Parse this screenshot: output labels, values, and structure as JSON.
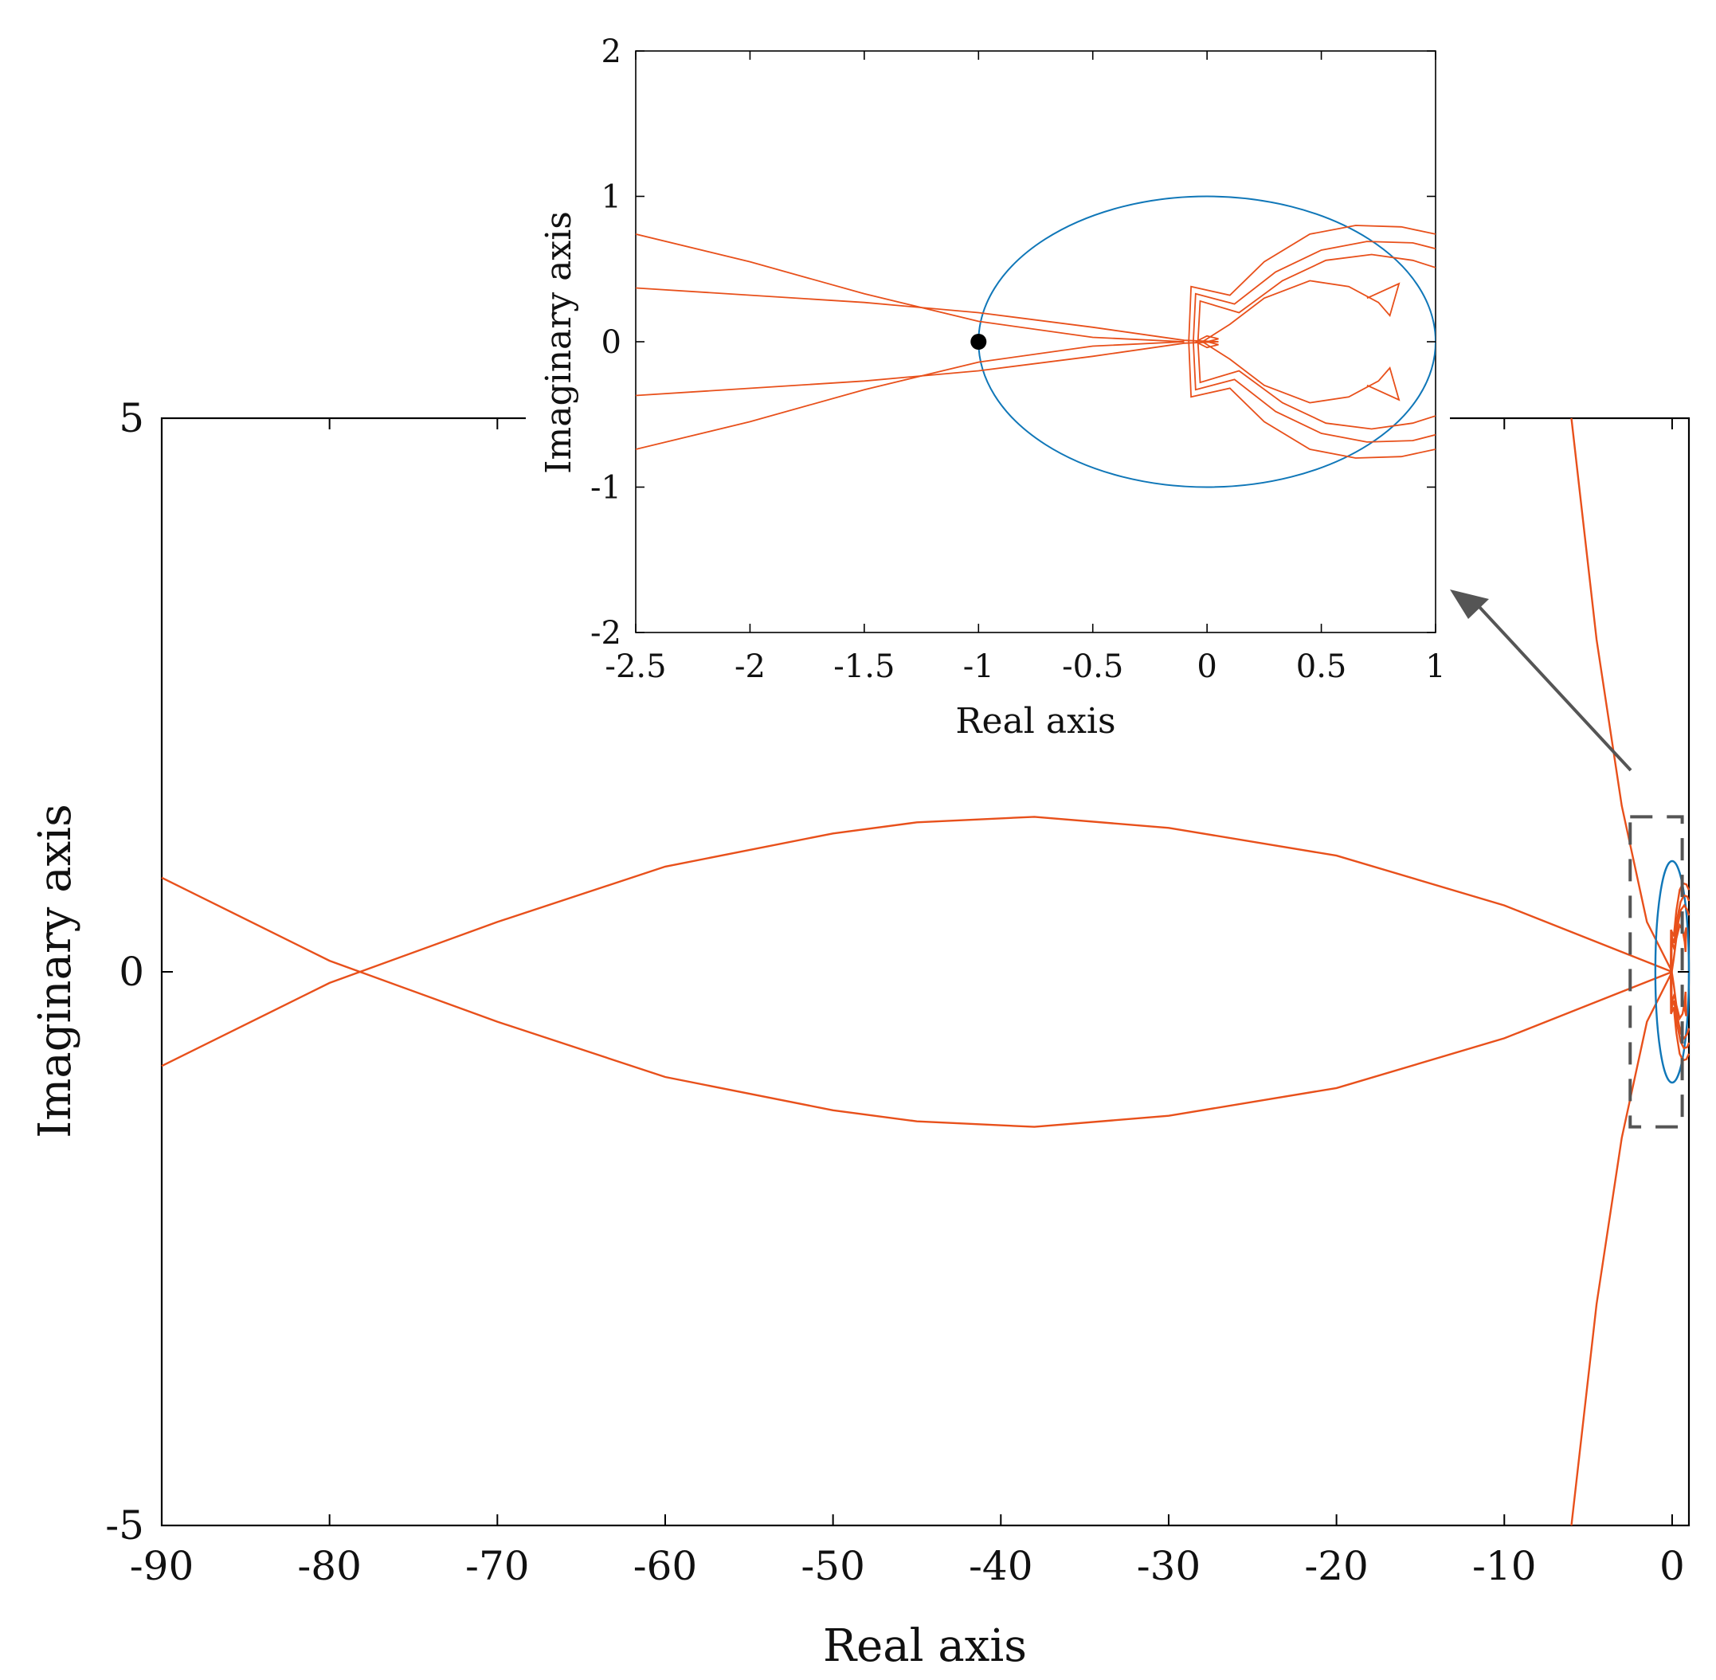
{
  "chart_data": [
    {
      "id": "main",
      "type": "line",
      "title": "",
      "xlabel": "Real axis",
      "ylabel": "Imaginary axis",
      "xlim": [
        -90,
        1
      ],
      "ylim": [
        -5,
        5
      ],
      "xticks": [
        -90,
        -80,
        -70,
        -60,
        -50,
        -40,
        -30,
        -20,
        -10,
        0
      ],
      "yticks": [
        -5,
        0,
        5
      ],
      "grid": false,
      "colors": {
        "nyquist": "#e8501b",
        "unit_circle": "#1077b8",
        "axes": "#000000",
        "zoom_box": "#555555"
      },
      "series": [
        {
          "points": [
            [
              -90,
              0.85
            ],
            [
              -80,
              0.1
            ],
            [
              -70,
              -0.45
            ],
            [
              -60,
              -0.95
            ],
            [
              -50,
              -1.25
            ],
            [
              -45,
              -1.35
            ],
            [
              -38,
              -1.4
            ],
            [
              -30,
              -1.3
            ],
            [
              -20,
              -1.05
            ],
            [
              -10,
              -0.6
            ],
            [
              -3,
              -0.18
            ],
            [
              0,
              0
            ]
          ]
        },
        {
          "points": [
            [
              -90,
              -0.85
            ],
            [
              -80,
              -0.1
            ],
            [
              -70,
              0.45
            ],
            [
              -60,
              0.95
            ],
            [
              -50,
              1.25
            ],
            [
              -45,
              1.35
            ],
            [
              -38,
              1.4
            ],
            [
              -30,
              1.3
            ],
            [
              -20,
              1.05
            ],
            [
              -10,
              0.6
            ],
            [
              -3,
              0.18
            ],
            [
              0,
              0
            ]
          ]
        },
        {
          "points": [
            [
              -6,
              5
            ],
            [
              -4.5,
              3
            ],
            [
              -3,
              1.5
            ],
            [
              -1.5,
              0.45
            ],
            [
              0,
              0
            ]
          ]
        },
        {
          "points": [
            [
              -6,
              -5
            ],
            [
              -4.5,
              -3
            ],
            [
              -3,
              -1.5
            ],
            [
              -1.5,
              -0.45
            ],
            [
              0,
              0
            ]
          ]
        }
      ],
      "zoom_box": {
        "x": [
          -2.5,
          0.6
        ],
        "y": [
          -1.4,
          1.4
        ]
      }
    },
    {
      "id": "inset",
      "type": "line",
      "title": "",
      "xlabel": "Real axis",
      "ylabel": "Imaginary axis",
      "xlim": [
        -2.5,
        1
      ],
      "ylim": [
        -2,
        2
      ],
      "xticks": [
        -2.5,
        -2,
        -1.5,
        -1,
        -0.5,
        0,
        0.5,
        1
      ],
      "yticks": [
        -2,
        -1,
        0,
        1,
        2
      ],
      "grid": false,
      "critical_point": [
        -1,
        0
      ],
      "unit_circle": {
        "center": [
          0,
          0
        ],
        "radius": 1
      },
      "series": [
        {
          "points": [
            [
              -2.5,
              0.74
            ],
            [
              -2.0,
              0.55
            ],
            [
              -1.5,
              0.33
            ],
            [
              -1.0,
              0.14
            ],
            [
              -0.5,
              0.03
            ],
            [
              -0.1,
              0
            ]
          ]
        },
        {
          "points": [
            [
              -2.5,
              -0.74
            ],
            [
              -2.0,
              -0.55
            ],
            [
              -1.5,
              -0.33
            ],
            [
              -1.0,
              -0.14
            ],
            [
              -0.5,
              -0.03
            ],
            [
              -0.1,
              0
            ]
          ]
        },
        {
          "points": [
            [
              -2.5,
              0.37
            ],
            [
              -1.5,
              0.27
            ],
            [
              -1.0,
              0.2
            ],
            [
              -0.5,
              0.1
            ],
            [
              -0.1,
              0.01
            ],
            [
              0.05,
              0
            ]
          ]
        },
        {
          "points": [
            [
              -2.5,
              -0.37
            ],
            [
              -1.5,
              -0.27
            ],
            [
              -1.0,
              -0.2
            ],
            [
              -0.5,
              -0.1
            ],
            [
              -0.1,
              -0.01
            ],
            [
              0.05,
              0
            ]
          ]
        },
        {
          "points": [
            [
              -0.08,
              0
            ],
            [
              -0.07,
              0.38
            ],
            [
              0.1,
              0.32
            ],
            [
              0.25,
              0.55
            ],
            [
              0.45,
              0.74
            ],
            [
              0.65,
              0.8
            ],
            [
              0.85,
              0.79
            ],
            [
              1,
              0.74
            ]
          ]
        },
        {
          "points": [
            [
              -0.08,
              0
            ],
            [
              -0.07,
              -0.38
            ],
            [
              0.1,
              -0.32
            ],
            [
              0.25,
              -0.55
            ],
            [
              0.45,
              -0.74
            ],
            [
              0.65,
              -0.8
            ],
            [
              0.85,
              -0.79
            ],
            [
              1,
              -0.74
            ]
          ]
        },
        {
          "points": [
            [
              -0.06,
              0
            ],
            [
              -0.05,
              0.33
            ],
            [
              0.12,
              0.26
            ],
            [
              0.3,
              0.48
            ],
            [
              0.5,
              0.63
            ],
            [
              0.7,
              0.69
            ],
            [
              0.9,
              0.68
            ],
            [
              1,
              0.64
            ]
          ]
        },
        {
          "points": [
            [
              -0.06,
              0
            ],
            [
              -0.05,
              -0.33
            ],
            [
              0.12,
              -0.26
            ],
            [
              0.3,
              -0.48
            ],
            [
              0.5,
              -0.63
            ],
            [
              0.7,
              -0.69
            ],
            [
              0.9,
              -0.68
            ],
            [
              1,
              -0.64
            ]
          ]
        },
        {
          "points": [
            [
              -0.04,
              0
            ],
            [
              -0.03,
              0.28
            ],
            [
              0.14,
              0.2
            ],
            [
              0.33,
              0.42
            ],
            [
              0.52,
              0.56
            ],
            [
              0.72,
              0.6
            ],
            [
              0.9,
              0.56
            ],
            [
              1,
              0.51
            ]
          ]
        },
        {
          "points": [
            [
              -0.04,
              0
            ],
            [
              -0.03,
              -0.28
            ],
            [
              0.14,
              -0.2
            ],
            [
              0.33,
              -0.42
            ],
            [
              0.52,
              -0.56
            ],
            [
              0.72,
              -0.6
            ],
            [
              0.9,
              -0.56
            ],
            [
              1,
              -0.51
            ]
          ]
        },
        {
          "points": [
            [
              -0.02,
              0
            ],
            [
              0.1,
              0.12
            ],
            [
              0.25,
              0.3
            ],
            [
              0.45,
              0.42
            ],
            [
              0.62,
              0.38
            ],
            [
              0.75,
              0.27
            ],
            [
              0.8,
              0.18
            ],
            [
              0.84,
              0.4
            ],
            [
              0.7,
              0.3
            ]
          ]
        },
        {
          "points": [
            [
              -0.02,
              0
            ],
            [
              0.1,
              -0.12
            ],
            [
              0.25,
              -0.3
            ],
            [
              0.45,
              -0.42
            ],
            [
              0.62,
              -0.38
            ],
            [
              0.75,
              -0.27
            ],
            [
              0.8,
              -0.18
            ],
            [
              0.84,
              -0.4
            ],
            [
              0.7,
              -0.3
            ]
          ]
        },
        {
          "points": [
            [
              -0.05,
              0
            ],
            [
              0.0,
              0.04
            ],
            [
              0.05,
              0.02
            ],
            [
              0.0,
              0
            ],
            [
              0.05,
              -0.02
            ],
            [
              0.0,
              -0.04
            ],
            [
              -0.05,
              0
            ]
          ]
        }
      ]
    }
  ]
}
